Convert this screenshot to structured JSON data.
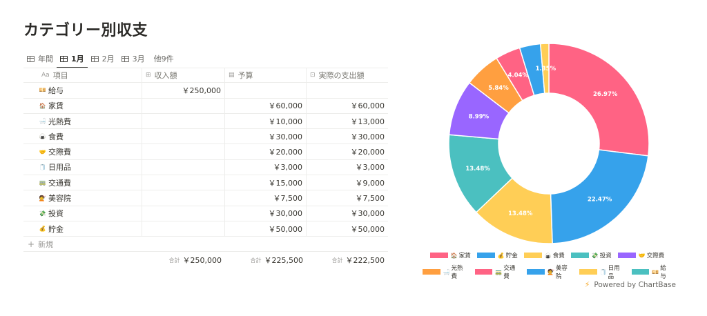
{
  "page": {
    "title": "カテゴリー別収支"
  },
  "tabs": [
    {
      "label": "年間",
      "active": false
    },
    {
      "label": "1月",
      "active": true
    },
    {
      "label": "2月",
      "active": false
    },
    {
      "label": "3月",
      "active": false
    }
  ],
  "more_tabs": "他9件",
  "table": {
    "headers": {
      "name": "項目",
      "income": "収入額",
      "budget": "予算",
      "actual": "実際の支出額"
    },
    "rows": [
      {
        "emoji": "💴",
        "name": "給与",
        "income": "￥250,000",
        "budget": "",
        "actual": ""
      },
      {
        "emoji": "🏠",
        "name": "家賃",
        "income": "",
        "budget": "￥60,000",
        "actual": "￥60,000"
      },
      {
        "emoji": "🛁",
        "name": "光熱費",
        "income": "",
        "budget": "￥10,000",
        "actual": "￥13,000"
      },
      {
        "emoji": "🍙",
        "name": "食費",
        "income": "",
        "budget": "￥30,000",
        "actual": "￥30,000"
      },
      {
        "emoji": "🤝",
        "name": "交際費",
        "income": "",
        "budget": "￥20,000",
        "actual": "￥20,000"
      },
      {
        "emoji": "🧻",
        "name": "日用品",
        "income": "",
        "budget": "￥3,000",
        "actual": "￥3,000"
      },
      {
        "emoji": "🚃",
        "name": "交通費",
        "income": "",
        "budget": "￥15,000",
        "actual": "￥9,000"
      },
      {
        "emoji": "💇",
        "name": "美容院",
        "income": "",
        "budget": "￥7,500",
        "actual": "￥7,500"
      },
      {
        "emoji": "💸",
        "name": "投資",
        "income": "",
        "budget": "￥30,000",
        "actual": "￥30,000"
      },
      {
        "emoji": "💰",
        "name": "貯金",
        "income": "",
        "budget": "￥50,000",
        "actual": "￥50,000"
      }
    ],
    "new_label": "新規",
    "sum_label": "合計",
    "sums": {
      "income": "￥250,000",
      "budget": "￥225,500",
      "actual": "￥222,500"
    }
  },
  "chart_data": {
    "type": "pie",
    "donut": true,
    "slices": [
      {
        "name": "家賃",
        "value": 26.97,
        "label": "26.97%",
        "color": "#ff6384"
      },
      {
        "name": "貯金",
        "value": 22.47,
        "label": "22.47%",
        "color": "#36a2eb"
      },
      {
        "name": "食費",
        "value": 13.48,
        "label": "13.48%",
        "color": "#ffce56"
      },
      {
        "name": "投資",
        "value": 13.48,
        "label": "13.48%",
        "color": "#4bc0c0"
      },
      {
        "name": "交際費",
        "value": 8.99,
        "label": "8.99%",
        "color": "#9966ff"
      },
      {
        "name": "光熱費",
        "value": 5.84,
        "label": "5.84%",
        "color": "#ff9f40"
      },
      {
        "name": "交通費",
        "value": 4.04,
        "label": "4.04%",
        "color": "#ff6384"
      },
      {
        "name": "美容院",
        "value": 3.37,
        "label": "",
        "color": "#36a2eb"
      },
      {
        "name": "日用品",
        "value": 1.35,
        "label": "1.35%",
        "color": "#ffce56"
      }
    ],
    "legend_position": "bottom"
  },
  "legend": {
    "row1": [
      {
        "emoji": "🏠",
        "name": "家賃",
        "color": "#ff6384"
      },
      {
        "emoji": "💰",
        "name": "貯金",
        "color": "#36a2eb"
      },
      {
        "emoji": "🍙",
        "name": "食費",
        "color": "#ffce56"
      },
      {
        "emoji": "💸",
        "name": "投資",
        "color": "#4bc0c0"
      },
      {
        "emoji": "🤝",
        "name": "交際費",
        "color": "#9966ff"
      }
    ],
    "row2": [
      {
        "emoji": "🛁",
        "name": "光熱費",
        "color": "#ff9f40"
      },
      {
        "emoji": "🚃",
        "name": "交通費",
        "color": "#ff6384"
      },
      {
        "emoji": "💇",
        "name": "美容院",
        "color": "#36a2eb"
      },
      {
        "emoji": "🧻",
        "name": "日用品",
        "color": "#ffce56"
      },
      {
        "emoji": "💴",
        "name": "給与",
        "color": "#4bc0c0"
      }
    ]
  },
  "footer": {
    "powered_by": "Powered by ChartBase"
  }
}
